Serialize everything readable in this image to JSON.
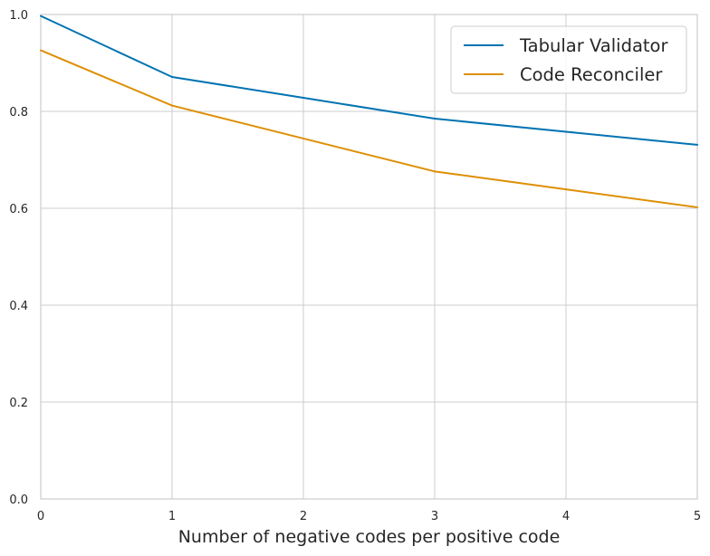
{
  "chart_data": {
    "type": "line",
    "title": "",
    "xlabel": "Number of negative codes per positive code",
    "ylabel": "",
    "x": [
      0,
      1,
      2,
      3,
      4,
      5
    ],
    "xlim": [
      0,
      5
    ],
    "ylim": [
      0.0,
      1.0
    ],
    "xticks": [
      0,
      1,
      2,
      3,
      4,
      5
    ],
    "xtick_labels": [
      "0",
      "1",
      "2",
      "3",
      "4",
      "5"
    ],
    "yticks": [
      0.0,
      0.2,
      0.4,
      0.6,
      0.8,
      1.0
    ],
    "ytick_labels": [
      "0.0",
      "0.2",
      "0.4",
      "0.6",
      "0.8",
      "1.0"
    ],
    "grid": true,
    "legend_position": "top-right",
    "series": [
      {
        "name": "Tabular Validator",
        "color": "#0173b2",
        "values": [
          0.997,
          0.871,
          0.828,
          0.785,
          0.758,
          0.731
        ]
      },
      {
        "name": "Code Reconciler",
        "color": "#de8f05",
        "values": [
          0.926,
          0.812,
          0.744,
          0.676,
          0.639,
          0.602
        ]
      }
    ]
  }
}
